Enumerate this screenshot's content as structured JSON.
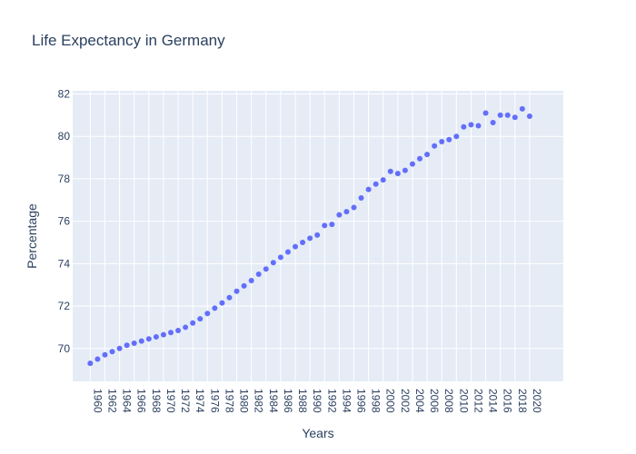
{
  "chart_data": {
    "type": "scatter",
    "title": "Life Expectancy in Germany",
    "xlabel": "Years",
    "ylabel": "Percentage",
    "x": [
      1960,
      1961,
      1962,
      1963,
      1964,
      1965,
      1966,
      1967,
      1968,
      1969,
      1970,
      1971,
      1972,
      1973,
      1974,
      1975,
      1976,
      1977,
      1978,
      1979,
      1980,
      1981,
      1982,
      1983,
      1984,
      1985,
      1986,
      1987,
      1988,
      1989,
      1990,
      1991,
      1992,
      1993,
      1994,
      1995,
      1996,
      1997,
      1998,
      1999,
      2000,
      2001,
      2002,
      2003,
      2004,
      2005,
      2006,
      2007,
      2008,
      2009,
      2010,
      2011,
      2012,
      2013,
      2014,
      2015,
      2016,
      2017,
      2018,
      2019,
      2020
    ],
    "y": [
      69.3,
      69.5,
      69.7,
      69.85,
      70.0,
      70.15,
      70.25,
      70.35,
      70.45,
      70.55,
      70.65,
      70.75,
      70.85,
      71.0,
      71.2,
      71.4,
      71.65,
      71.9,
      72.15,
      72.4,
      72.7,
      72.95,
      73.2,
      73.5,
      73.75,
      74.05,
      74.3,
      74.55,
      74.8,
      75.0,
      75.2,
      75.35,
      75.8,
      75.85,
      76.3,
      76.45,
      76.65,
      77.1,
      77.5,
      77.75,
      77.95,
      78.35,
      78.25,
      78.4,
      78.7,
      78.95,
      79.15,
      79.55,
      79.75,
      79.85,
      80.0,
      80.45,
      80.55,
      80.5,
      81.1,
      80.65,
      81.0,
      81.0,
      80.9,
      81.3,
      80.95
    ],
    "xticks": [
      1960,
      1962,
      1964,
      1966,
      1968,
      1970,
      1972,
      1974,
      1976,
      1978,
      1980,
      1982,
      1984,
      1986,
      1988,
      1990,
      1992,
      1994,
      1996,
      1998,
      2000,
      2002,
      2004,
      2006,
      2008,
      2010,
      2012,
      2014,
      2016,
      2018,
      2020
    ],
    "yticks": [
      70,
      72,
      74,
      76,
      78,
      80,
      82
    ],
    "xlim": [
      1957.6,
      2024.6
    ],
    "ylim": [
      68.45,
      82.15
    ],
    "grid": true,
    "colors": {
      "marker": "#636efa",
      "plot_bg": "#e5ecf6",
      "grid": "#ffffff",
      "text": "#2a3f5f"
    }
  }
}
